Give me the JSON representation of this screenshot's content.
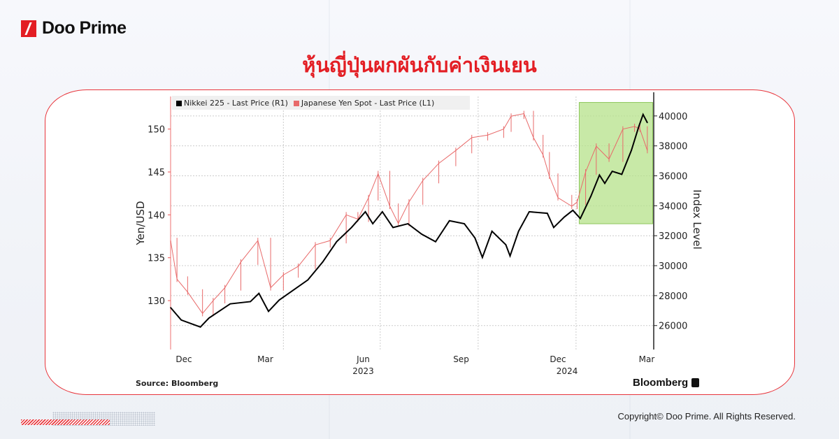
{
  "brand": {
    "name": "Doo Prime"
  },
  "title": "หุ้นญี่ปุ่นผกผันกับค่าเงินเยน",
  "footer": {
    "copyright": "Copyright© Doo Prime. All Rights Reserved."
  },
  "colors": {
    "accent": "#e31e24",
    "nikkei": "#000000",
    "yen": "#e86a6a",
    "highlight": "#b5e28a"
  },
  "chart_data": {
    "type": "line",
    "title": "",
    "legend": {
      "placement": "top-left",
      "entries": [
        "Nikkei 225 - Last Price (R1)",
        "Japanese Yen Spot - Last Price (L1)"
      ]
    },
    "source": "Source: Bloomberg",
    "logo": "Bloomberg",
    "grid": true,
    "x_axis": {
      "type": "date",
      "range": [
        "2022-12-16",
        "2024-03-14"
      ],
      "tick_labels": [
        {
          "date": "2022-12-15",
          "label": "Dec"
        },
        {
          "date": "2023-03-15",
          "label": "Mar"
        },
        {
          "date": "2023-06-15",
          "label": "Jun"
        },
        {
          "date": "2023-09-15",
          "label": "Sep"
        },
        {
          "date": "2023-12-15",
          "label": "Dec"
        },
        {
          "date": "2024-03-15",
          "label": "Mar"
        }
      ],
      "year_labels": [
        {
          "date": "2023-06-15",
          "label": "2023"
        },
        {
          "date": "2024-02-01",
          "label": "2024"
        }
      ],
      "gridlines": [
        "2023-04-01",
        "2023-07-01",
        "2023-10-01",
        "2024-01-01"
      ]
    },
    "y_left": {
      "label": "Yen/USD",
      "range": [
        124.3,
        153.8
      ],
      "ticks": [
        130,
        135,
        140,
        145,
        150
      ]
    },
    "y_right": {
      "label": "Index Level",
      "range": [
        24400,
        41300
      ],
      "ticks": [
        26000,
        28000,
        30000,
        32000,
        34000,
        36000,
        38000,
        40000
      ]
    },
    "highlight": {
      "x": [
        "2024-01-04",
        "2024-03-13"
      ],
      "y_right": [
        32800,
        40900
      ]
    },
    "series": [
      {
        "name": "Nikkei 225 - Last Price (R1)",
        "axis": "right",
        "points": [
          [
            "2022-12-16",
            27200
          ],
          [
            "2022-12-26",
            26370
          ],
          [
            "2023-01-13",
            25900
          ],
          [
            "2023-01-21",
            26500
          ],
          [
            "2023-02-10",
            27450
          ],
          [
            "2023-03-01",
            27600
          ],
          [
            "2023-03-09",
            28150
          ],
          [
            "2023-03-18",
            26950
          ],
          [
            "2023-03-28",
            27700
          ],
          [
            "2023-04-11",
            28400
          ],
          [
            "2023-04-24",
            29050
          ],
          [
            "2023-05-08",
            30250
          ],
          [
            "2023-05-21",
            31600
          ],
          [
            "2023-06-04",
            32550
          ],
          [
            "2023-06-17",
            33600
          ],
          [
            "2023-06-24",
            32800
          ],
          [
            "2023-07-03",
            33600
          ],
          [
            "2023-07-13",
            32550
          ],
          [
            "2023-07-27",
            32800
          ],
          [
            "2023-08-09",
            32100
          ],
          [
            "2023-08-22",
            31600
          ],
          [
            "2023-09-04",
            33000
          ],
          [
            "2023-09-18",
            32800
          ],
          [
            "2023-09-28",
            31850
          ],
          [
            "2023-10-05",
            30550
          ],
          [
            "2023-10-14",
            32300
          ],
          [
            "2023-10-27",
            31400
          ],
          [
            "2023-10-31",
            30650
          ],
          [
            "2023-11-08",
            32300
          ],
          [
            "2023-11-18",
            33600
          ],
          [
            "2023-12-05",
            33500
          ],
          [
            "2023-12-11",
            32550
          ],
          [
            "2023-12-21",
            33250
          ],
          [
            "2023-12-29",
            33700
          ],
          [
            "2024-01-05",
            33150
          ],
          [
            "2024-01-15",
            34650
          ],
          [
            "2024-01-23",
            36050
          ],
          [
            "2024-01-28",
            35500
          ],
          [
            "2024-02-04",
            36300
          ],
          [
            "2024-02-13",
            36100
          ],
          [
            "2024-02-22",
            37700
          ],
          [
            "2024-02-29",
            39300
          ],
          [
            "2024-03-04",
            40100
          ],
          [
            "2024-03-08",
            39550
          ]
        ]
      },
      {
        "name": "Japanese Yen Spot - Last Price (L1)",
        "axis": "left",
        "points": [
          [
            "2022-12-16",
            137.0
          ],
          [
            "2022-12-22",
            132.5
          ],
          [
            "2023-01-01",
            131.0
          ],
          [
            "2023-01-15",
            128.5
          ],
          [
            "2023-01-25",
            130.0
          ],
          [
            "2023-02-05",
            131.5
          ],
          [
            "2023-02-20",
            134.5
          ],
          [
            "2023-03-08",
            137.0
          ],
          [
            "2023-03-20",
            131.5
          ],
          [
            "2023-04-01",
            133.0
          ],
          [
            "2023-04-15",
            134.0
          ],
          [
            "2023-05-01",
            136.5
          ],
          [
            "2023-05-15",
            137.0
          ],
          [
            "2023-05-30",
            140.0
          ],
          [
            "2023-06-10",
            139.5
          ],
          [
            "2023-06-20",
            142.0
          ],
          [
            "2023-06-29",
            144.8
          ],
          [
            "2023-07-10",
            141.0
          ],
          [
            "2023-07-18",
            139.0
          ],
          [
            "2023-07-28",
            141.5
          ],
          [
            "2023-08-10",
            144.0
          ],
          [
            "2023-08-25",
            146.0
          ],
          [
            "2023-09-10",
            147.5
          ],
          [
            "2023-09-25",
            149.0
          ],
          [
            "2023-10-10",
            149.3
          ],
          [
            "2023-10-25",
            150.0
          ],
          [
            "2023-11-01",
            151.5
          ],
          [
            "2023-11-13",
            151.8
          ],
          [
            "2023-11-22",
            149.0
          ],
          [
            "2023-12-01",
            147.0
          ],
          [
            "2023-12-07",
            144.5
          ],
          [
            "2023-12-15",
            142.0
          ],
          [
            "2023-12-28",
            141.0
          ],
          [
            "2024-01-02",
            141.5
          ],
          [
            "2024-01-10",
            145.0
          ],
          [
            "2024-01-20",
            148.0
          ],
          [
            "2024-02-01",
            146.5
          ],
          [
            "2024-02-14",
            150.0
          ],
          [
            "2024-02-25",
            150.3
          ],
          [
            "2024-03-01",
            150.0
          ],
          [
            "2024-03-08",
            147.5
          ]
        ]
      }
    ]
  }
}
